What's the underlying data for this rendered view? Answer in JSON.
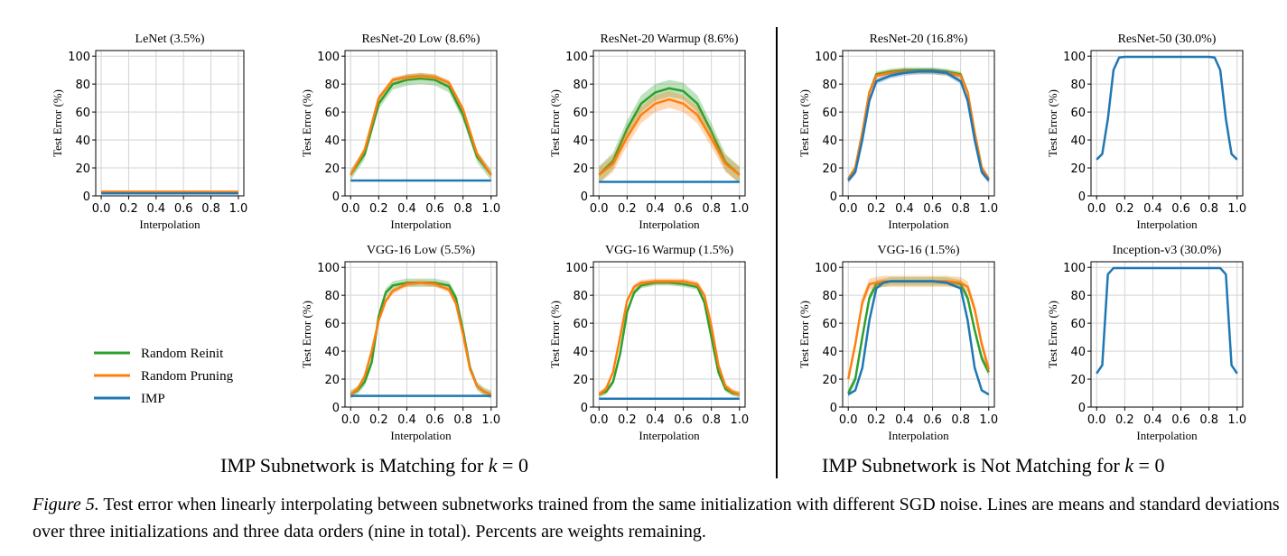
{
  "colors": {
    "reinit": "#2ca02c",
    "pruning": "#ff7f0e",
    "imp": "#1f77b4"
  },
  "legend": {
    "entries": [
      "Random Reinit",
      "Random Pruning",
      "IMP"
    ]
  },
  "groups": {
    "left": "IMP Subnetwork is Matching for ",
    "right": "IMP Subnetwork is Not Matching for ",
    "math_var": "k",
    "math_rest": " = 0"
  },
  "caption": {
    "label": "Figure 5.",
    "text": " Test error when linearly interpolating between subnetworks trained from the same initialization with different SGD noise. Lines are means and standard deviations over three initializations and three data orders (nine in total). Percents are weights remaining."
  },
  "chart_data": [
    {
      "type": "line",
      "title": "LeNet (3.5%)",
      "xlabel": "Interpolation",
      "ylabel": "Test Error (%)",
      "xlim": [
        0,
        1
      ],
      "ylim": [
        0,
        100
      ],
      "grid": true,
      "xticks": [
        "0.0",
        "0.2",
        "0.4",
        "0.6",
        "0.8",
        "1.0"
      ],
      "yticks": [
        "0",
        "20",
        "40",
        "60",
        "80",
        "100"
      ],
      "x": [
        0,
        0.1,
        0.2,
        0.3,
        0.4,
        0.5,
        0.6,
        0.7,
        0.8,
        0.9,
        1.0
      ],
      "series": [
        {
          "name": "Random Reinit",
          "values": [
            2.5,
            2.5,
            2.5,
            2.5,
            2.5,
            2.5,
            2.5,
            2.5,
            2.5,
            2.5,
            2.5
          ],
          "std": 0.8
        },
        {
          "name": "Random Pruning",
          "values": [
            3,
            3,
            3,
            3,
            3,
            3,
            3,
            3,
            3,
            3,
            3
          ],
          "std": 0.8
        },
        {
          "name": "IMP",
          "values": [
            1.8,
            1.8,
            1.8,
            1.8,
            1.8,
            1.8,
            1.8,
            1.8,
            1.8,
            1.8,
            1.8
          ],
          "std": 0.3
        }
      ]
    },
    {
      "type": "line",
      "title": "ResNet-20 Low (8.6%)",
      "xlabel": "Interpolation",
      "ylabel": "Test Error (%)",
      "xlim": [
        0,
        1
      ],
      "ylim": [
        0,
        100
      ],
      "grid": true,
      "xticks": [
        "0.0",
        "0.2",
        "0.4",
        "0.6",
        "0.8",
        "1.0"
      ],
      "yticks": [
        "0",
        "20",
        "40",
        "60",
        "80",
        "100"
      ],
      "x": [
        0,
        0.1,
        0.2,
        0.3,
        0.4,
        0.5,
        0.6,
        0.7,
        0.8,
        0.9,
        1.0
      ],
      "series": [
        {
          "name": "Random Reinit",
          "values": [
            15,
            30,
            66,
            80,
            83,
            84,
            83,
            78,
            58,
            28,
            15
          ],
          "std": 4
        },
        {
          "name": "Random Pruning",
          "values": [
            15,
            33,
            70,
            83,
            85,
            86,
            85,
            81,
            62,
            30,
            15
          ],
          "std": 2
        },
        {
          "name": "IMP",
          "values": [
            11,
            11,
            11,
            11,
            11,
            11,
            11,
            11,
            11,
            11,
            11
          ],
          "std": 0.5
        }
      ]
    },
    {
      "type": "line",
      "title": "ResNet-20 Warmup (8.6%)",
      "xlabel": "Interpolation",
      "ylabel": "Test Error (%)",
      "xlim": [
        0,
        1
      ],
      "ylim": [
        0,
        100
      ],
      "grid": true,
      "xticks": [
        "0.0",
        "0.2",
        "0.4",
        "0.6",
        "0.8",
        "1.0"
      ],
      "yticks": [
        "0",
        "20",
        "40",
        "60",
        "80",
        "100"
      ],
      "x": [
        0,
        0.1,
        0.2,
        0.3,
        0.4,
        0.5,
        0.6,
        0.7,
        0.8,
        0.9,
        1.0
      ],
      "series": [
        {
          "name": "Random Reinit",
          "values": [
            15,
            25,
            48,
            66,
            74,
            77,
            75,
            66,
            46,
            24,
            15
          ],
          "std": 6
        },
        {
          "name": "Random Pruning",
          "values": [
            15,
            23,
            42,
            58,
            66,
            69,
            66,
            58,
            41,
            23,
            15
          ],
          "std": 6
        },
        {
          "name": "IMP",
          "values": [
            10,
            10,
            10,
            10,
            10,
            10,
            10,
            10,
            10,
            10,
            10
          ],
          "std": 0.5
        }
      ]
    },
    {
      "type": "line",
      "title": "ResNet-20 (16.8%)",
      "xlabel": "Interpolation",
      "ylabel": "Test Error (%)",
      "xlim": [
        0,
        1
      ],
      "ylim": [
        0,
        100
      ],
      "grid": true,
      "xticks": [
        "0.0",
        "0.2",
        "0.4",
        "0.6",
        "0.8",
        "1.0"
      ],
      "yticks": [
        "0",
        "20",
        "40",
        "60",
        "80",
        "100"
      ],
      "x": [
        0,
        0.05,
        0.1,
        0.15,
        0.2,
        0.3,
        0.4,
        0.5,
        0.6,
        0.7,
        0.8,
        0.85,
        0.9,
        0.95,
        1.0
      ],
      "series": [
        {
          "name": "Random Reinit",
          "values": [
            12,
            20,
            45,
            74,
            87,
            89,
            90,
            90,
            90,
            89,
            87,
            74,
            45,
            20,
            12
          ],
          "std": 2
        },
        {
          "name": "Random Pruning",
          "values": [
            12,
            20,
            45,
            74,
            86,
            88,
            89,
            89,
            89,
            88,
            86,
            74,
            45,
            20,
            12
          ],
          "std": 2
        },
        {
          "name": "IMP",
          "values": [
            11,
            17,
            40,
            68,
            82,
            86,
            88,
            89,
            89,
            88,
            82,
            68,
            40,
            17,
            11
          ],
          "std": 2
        }
      ]
    },
    {
      "type": "line",
      "title": "ResNet-50 (30.0%)",
      "xlabel": "Interpolation",
      "ylabel": "Test Error (%)",
      "xlim": [
        0,
        1
      ],
      "ylim": [
        0,
        100
      ],
      "grid": true,
      "xticks": [
        "0.0",
        "0.2",
        "0.4",
        "0.6",
        "0.8",
        "1.0"
      ],
      "yticks": [
        "0",
        "20",
        "40",
        "60",
        "80",
        "100"
      ],
      "x": [
        0,
        0.04,
        0.08,
        0.12,
        0.16,
        0.2,
        0.3,
        0.4,
        0.5,
        0.6,
        0.7,
        0.8,
        0.84,
        0.88,
        0.92,
        0.96,
        1.0
      ],
      "series": [
        {
          "name": "IMP",
          "values": [
            26,
            30,
            55,
            90,
            99,
            99.5,
            99.5,
            99.5,
            99.5,
            99.5,
            99.5,
            99.5,
            99,
            90,
            55,
            30,
            26
          ],
          "std": 0.5
        }
      ]
    },
    {
      "type": "line",
      "title": "VGG-16 Low (5.5%)",
      "xlabel": "Interpolation",
      "ylabel": "Test Error (%)",
      "xlim": [
        0,
        1
      ],
      "ylim": [
        0,
        100
      ],
      "grid": true,
      "xticks": [
        "0.0",
        "0.2",
        "0.4",
        "0.6",
        "0.8",
        "1.0"
      ],
      "yticks": [
        "0",
        "20",
        "40",
        "60",
        "80",
        "100"
      ],
      "x": [
        0,
        0.05,
        0.1,
        0.15,
        0.2,
        0.25,
        0.3,
        0.4,
        0.5,
        0.6,
        0.7,
        0.75,
        0.8,
        0.85,
        0.9,
        0.95,
        1.0
      ],
      "series": [
        {
          "name": "Random Reinit",
          "values": [
            9,
            12,
            18,
            32,
            65,
            82,
            87,
            89,
            89,
            89,
            87,
            78,
            55,
            28,
            15,
            11,
            9
          ],
          "std": 3
        },
        {
          "name": "Random Pruning",
          "values": [
            9,
            13,
            22,
            40,
            62,
            76,
            83,
            88,
            89,
            88,
            84,
            74,
            52,
            27,
            15,
            11,
            9
          ],
          "std": 2
        },
        {
          "name": "IMP",
          "values": [
            8,
            8,
            8,
            8,
            8,
            8,
            8,
            8,
            8,
            8,
            8,
            8,
            8,
            8,
            8,
            8,
            8
          ],
          "std": 0.4
        }
      ]
    },
    {
      "type": "line",
      "title": "VGG-16 Warmup (1.5%)",
      "xlabel": "Interpolation",
      "ylabel": "Test Error (%)",
      "xlim": [
        0,
        1
      ],
      "ylim": [
        0,
        100
      ],
      "grid": true,
      "xticks": [
        "0.0",
        "0.2",
        "0.4",
        "0.6",
        "0.8",
        "1.0"
      ],
      "yticks": [
        "0",
        "20",
        "40",
        "60",
        "80",
        "100"
      ],
      "x": [
        0,
        0.05,
        0.1,
        0.15,
        0.2,
        0.25,
        0.3,
        0.4,
        0.5,
        0.6,
        0.7,
        0.75,
        0.8,
        0.85,
        0.9,
        0.95,
        1.0
      ],
      "series": [
        {
          "name": "Random Reinit",
          "values": [
            9,
            11,
            18,
            38,
            68,
            82,
            87,
            89,
            89,
            88,
            86,
            75,
            50,
            25,
            13,
            10,
            9
          ],
          "std": 2
        },
        {
          "name": "Random Pruning",
          "values": [
            9,
            13,
            25,
            50,
            76,
            86,
            89,
            90,
            90,
            90,
            88,
            80,
            58,
            30,
            15,
            11,
            9
          ],
          "std": 2
        },
        {
          "name": "IMP",
          "values": [
            6,
            6,
            6,
            6,
            6,
            6,
            6,
            6,
            6,
            6,
            6,
            6,
            6,
            6,
            6,
            6,
            6
          ],
          "std": 0.4
        }
      ]
    },
    {
      "type": "line",
      "title": "VGG-16 (1.5%)",
      "xlabel": "Interpolation",
      "ylabel": "Test Error (%)",
      "xlim": [
        0,
        1
      ],
      "ylim": [
        0,
        100
      ],
      "grid": true,
      "xticks": [
        "0.0",
        "0.2",
        "0.4",
        "0.6",
        "0.8",
        "1.0"
      ],
      "yticks": [
        "0",
        "20",
        "40",
        "60",
        "80",
        "100"
      ],
      "x": [
        0,
        0.05,
        0.1,
        0.15,
        0.2,
        0.25,
        0.3,
        0.4,
        0.5,
        0.6,
        0.7,
        0.8,
        0.85,
        0.9,
        0.95,
        1.0
      ],
      "series": [
        {
          "name": "Random Reinit",
          "values": [
            10,
            20,
            50,
            78,
            88,
            89,
            90,
            90,
            90,
            90,
            90,
            88,
            78,
            55,
            35,
            25
          ],
          "std": 3
        },
        {
          "name": "Random Pruning",
          "values": [
            20,
            45,
            75,
            88,
            89,
            90,
            90,
            90,
            90,
            90,
            90,
            89,
            86,
            70,
            45,
            27
          ],
          "std": 4
        },
        {
          "name": "IMP",
          "values": [
            9,
            12,
            28,
            62,
            85,
            89,
            90,
            90,
            90,
            90,
            89,
            85,
            62,
            28,
            12,
            9
          ],
          "std": 1
        }
      ]
    },
    {
      "type": "line",
      "title": "Inception-v3 (30.0%)",
      "xlabel": "Interpolation",
      "ylabel": "Test Error (%)",
      "xlim": [
        0,
        1
      ],
      "ylim": [
        0,
        100
      ],
      "grid": true,
      "xticks": [
        "0.0",
        "0.2",
        "0.4",
        "0.6",
        "0.8",
        "1.0"
      ],
      "yticks": [
        "0",
        "20",
        "40",
        "60",
        "80",
        "100"
      ],
      "x": [
        0,
        0.04,
        0.08,
        0.12,
        0.2,
        0.3,
        0.4,
        0.5,
        0.6,
        0.7,
        0.8,
        0.88,
        0.92,
        0.96,
        1.0
      ],
      "series": [
        {
          "name": "IMP",
          "values": [
            24,
            30,
            95,
            99.5,
            99.5,
            99.5,
            99.5,
            99.5,
            99.5,
            99.5,
            99.5,
            99.5,
            95,
            30,
            24
          ],
          "std": 0.5
        }
      ]
    }
  ]
}
